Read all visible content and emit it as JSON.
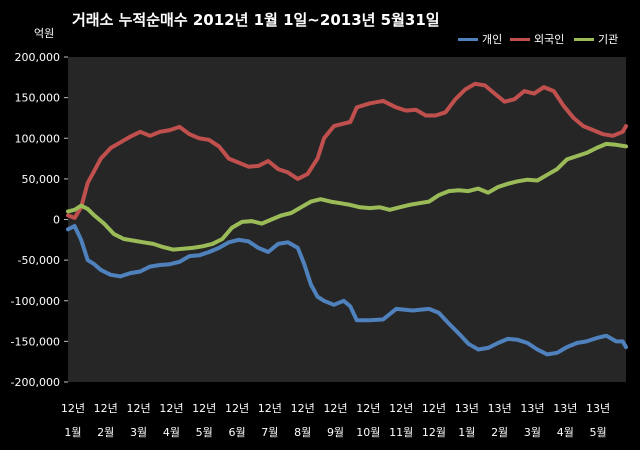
{
  "chart_data": {
    "type": "line",
    "title": "거래소  누적순매수 2012년 1월 1일~2013년 5월31일",
    "ylabel": "억원",
    "ylim": [
      -200000,
      200000
    ],
    "yticks": [
      200000,
      150000,
      100000,
      50000,
      0,
      -50000,
      -100000,
      -150000,
      -200000
    ],
    "ytick_labels": [
      "200,000",
      "150,000",
      "100,000",
      "50,000",
      "0",
      "-50,000",
      "-100,000",
      "-150,000",
      "-200,000"
    ],
    "x_labels": [
      {
        "line1": "12년",
        "line2": "1월"
      },
      {
        "line1": "12년",
        "line2": "2월"
      },
      {
        "line1": "12년",
        "line2": "3월"
      },
      {
        "line1": "12년",
        "line2": "4월"
      },
      {
        "line1": "12년",
        "line2": "5월"
      },
      {
        "line1": "12년",
        "line2": "6월"
      },
      {
        "line1": "12년",
        "line2": "7월"
      },
      {
        "line1": "12년",
        "line2": "8월"
      },
      {
        "line1": "12년",
        "line2": "9월"
      },
      {
        "line1": "12년",
        "line2": "10월"
      },
      {
        "line1": "12년",
        "line2": "11월"
      },
      {
        "line1": "12년",
        "line2": "12월"
      },
      {
        "line1": "13년",
        "line2": "1월"
      },
      {
        "line1": "13년",
        "line2": "2월"
      },
      {
        "line1": "13년",
        "line2": "3월"
      },
      {
        "line1": "13년",
        "line2": "4월"
      },
      {
        "line1": "13년",
        "line2": "5월"
      }
    ],
    "x_range_months": [
      0,
      17
    ],
    "grid": false,
    "legend_position": "top-right",
    "series": [
      {
        "name": "개인",
        "color": "#4F81BD",
        "points": [
          [
            0,
            -12000
          ],
          [
            0.2,
            -8000
          ],
          [
            0.4,
            -25000
          ],
          [
            0.6,
            -50000
          ],
          [
            0.8,
            -55000
          ],
          [
            1,
            -62000
          ],
          [
            1.3,
            -68000
          ],
          [
            1.6,
            -70000
          ],
          [
            1.9,
            -66000
          ],
          [
            2.2,
            -64000
          ],
          [
            2.5,
            -58000
          ],
          [
            2.8,
            -56000
          ],
          [
            3.1,
            -55000
          ],
          [
            3.4,
            -52000
          ],
          [
            3.7,
            -45000
          ],
          [
            4,
            -44000
          ],
          [
            4.3,
            -40000
          ],
          [
            4.6,
            -35000
          ],
          [
            4.9,
            -28000
          ],
          [
            5.2,
            -25000
          ],
          [
            5.5,
            -27000
          ],
          [
            5.8,
            -35000
          ],
          [
            6.1,
            -40000
          ],
          [
            6.4,
            -30000
          ],
          [
            6.7,
            -28000
          ],
          [
            7.0,
            -35000
          ],
          [
            7.2,
            -55000
          ],
          [
            7.4,
            -80000
          ],
          [
            7.6,
            -95000
          ],
          [
            7.8,
            -100000
          ],
          [
            8.1,
            -105000
          ],
          [
            8.4,
            -100000
          ],
          [
            8.6,
            -107000
          ],
          [
            8.8,
            -124000
          ],
          [
            9.2,
            -124000
          ],
          [
            9.6,
            -123000
          ],
          [
            10.0,
            -110000
          ],
          [
            10.5,
            -112000
          ],
          [
            11.0,
            -110000
          ],
          [
            11.3,
            -115000
          ],
          [
            11.6,
            -128000
          ],
          [
            11.9,
            -140000
          ],
          [
            12.2,
            -153000
          ],
          [
            12.5,
            -160000
          ],
          [
            12.8,
            -158000
          ],
          [
            13.1,
            -152000
          ],
          [
            13.4,
            -147000
          ],
          [
            13.7,
            -148000
          ],
          [
            14.0,
            -152000
          ],
          [
            14.3,
            -160000
          ],
          [
            14.6,
            -166000
          ],
          [
            14.9,
            -164000
          ],
          [
            15.2,
            -157000
          ],
          [
            15.5,
            -152000
          ],
          [
            15.8,
            -150000
          ],
          [
            16.1,
            -146000
          ],
          [
            16.4,
            -143000
          ],
          [
            16.7,
            -150000
          ],
          [
            16.9,
            -150000
          ],
          [
            17.0,
            -157000
          ]
        ]
      },
      {
        "name": "외국인",
        "color": "#C0504D",
        "points": [
          [
            0,
            5000
          ],
          [
            0.2,
            2000
          ],
          [
            0.4,
            15000
          ],
          [
            0.6,
            45000
          ],
          [
            0.8,
            60000
          ],
          [
            1,
            75000
          ],
          [
            1.3,
            88000
          ],
          [
            1.6,
            95000
          ],
          [
            1.9,
            102000
          ],
          [
            2.2,
            108000
          ],
          [
            2.5,
            103000
          ],
          [
            2.8,
            108000
          ],
          [
            3.1,
            110000
          ],
          [
            3.4,
            114000
          ],
          [
            3.7,
            105000
          ],
          [
            4,
            100000
          ],
          [
            4.3,
            98000
          ],
          [
            4.6,
            90000
          ],
          [
            4.9,
            75000
          ],
          [
            5.2,
            70000
          ],
          [
            5.5,
            65000
          ],
          [
            5.8,
            66000
          ],
          [
            6.1,
            72000
          ],
          [
            6.4,
            62000
          ],
          [
            6.7,
            58000
          ],
          [
            7.0,
            50000
          ],
          [
            7.3,
            56000
          ],
          [
            7.6,
            75000
          ],
          [
            7.8,
            100000
          ],
          [
            8.1,
            115000
          ],
          [
            8.4,
            118000
          ],
          [
            8.6,
            120000
          ],
          [
            8.8,
            138000
          ],
          [
            9.2,
            143000
          ],
          [
            9.6,
            146000
          ],
          [
            10.0,
            138000
          ],
          [
            10.3,
            134000
          ],
          [
            10.6,
            135000
          ],
          [
            10.9,
            128000
          ],
          [
            11.2,
            128000
          ],
          [
            11.5,
            132000
          ],
          [
            11.8,
            148000
          ],
          [
            12.1,
            160000
          ],
          [
            12.4,
            167000
          ],
          [
            12.7,
            165000
          ],
          [
            13.0,
            155000
          ],
          [
            13.3,
            145000
          ],
          [
            13.6,
            148000
          ],
          [
            13.9,
            158000
          ],
          [
            14.2,
            155000
          ],
          [
            14.5,
            163000
          ],
          [
            14.8,
            158000
          ],
          [
            15.1,
            140000
          ],
          [
            15.4,
            125000
          ],
          [
            15.7,
            115000
          ],
          [
            16.0,
            110000
          ],
          [
            16.3,
            105000
          ],
          [
            16.6,
            103000
          ],
          [
            16.9,
            108000
          ],
          [
            17.0,
            115000
          ]
        ]
      },
      {
        "name": "기관",
        "color": "#9BBB59",
        "points": [
          [
            0,
            10000
          ],
          [
            0.2,
            12000
          ],
          [
            0.4,
            17000
          ],
          [
            0.6,
            13000
          ],
          [
            0.8,
            5000
          ],
          [
            1.1,
            -5000
          ],
          [
            1.4,
            -18000
          ],
          [
            1.7,
            -24000
          ],
          [
            2.0,
            -26000
          ],
          [
            2.3,
            -28000
          ],
          [
            2.6,
            -30000
          ],
          [
            2.9,
            -34000
          ],
          [
            3.2,
            -37000
          ],
          [
            3.5,
            -36000
          ],
          [
            3.8,
            -35000
          ],
          [
            4.1,
            -33000
          ],
          [
            4.4,
            -30000
          ],
          [
            4.7,
            -24000
          ],
          [
            5.0,
            -10000
          ],
          [
            5.3,
            -3000
          ],
          [
            5.6,
            -2000
          ],
          [
            5.9,
            -5000
          ],
          [
            6.2,
            0
          ],
          [
            6.5,
            5000
          ],
          [
            6.8,
            8000
          ],
          [
            7.1,
            15000
          ],
          [
            7.4,
            22000
          ],
          [
            7.7,
            25000
          ],
          [
            8.0,
            22000
          ],
          [
            8.3,
            20000
          ],
          [
            8.6,
            18000
          ],
          [
            8.9,
            15000
          ],
          [
            9.2,
            14000
          ],
          [
            9.5,
            15000
          ],
          [
            9.8,
            12000
          ],
          [
            10.1,
            15000
          ],
          [
            10.4,
            18000
          ],
          [
            10.7,
            20000
          ],
          [
            11.0,
            22000
          ],
          [
            11.3,
            30000
          ],
          [
            11.6,
            35000
          ],
          [
            11.9,
            36000
          ],
          [
            12.2,
            35000
          ],
          [
            12.5,
            38000
          ],
          [
            12.8,
            33000
          ],
          [
            13.1,
            40000
          ],
          [
            13.4,
            44000
          ],
          [
            13.7,
            47000
          ],
          [
            14.0,
            49000
          ],
          [
            14.3,
            48000
          ],
          [
            14.6,
            55000
          ],
          [
            14.9,
            62000
          ],
          [
            15.2,
            74000
          ],
          [
            15.5,
            78000
          ],
          [
            15.8,
            82000
          ],
          [
            16.1,
            88000
          ],
          [
            16.4,
            93000
          ],
          [
            16.7,
            92000
          ],
          [
            17.0,
            90000
          ]
        ]
      }
    ]
  }
}
